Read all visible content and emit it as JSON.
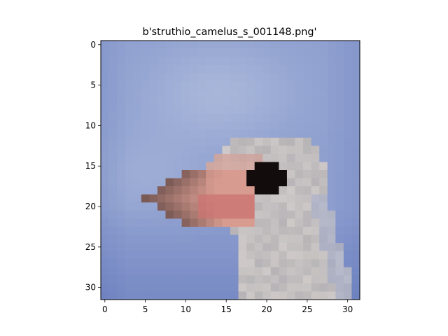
{
  "figure": {
    "title": "b'struthio_camelus_s_001148.png'"
  },
  "image": {
    "subject": "ostrich head close-up, low-resolution 32x32 thumbnail",
    "grid_size": [
      32,
      32
    ],
    "extent": [
      -0.5,
      31.5,
      31.5,
      -0.5
    ],
    "palette": {
      "sky_light": "#aab8da",
      "sky_mid": "#8e9fcf",
      "sky_dark": "#5f74b8",
      "neck_light": "#d9d3d0",
      "neck_mid": "#a4a2a8",
      "beak_pink": "#d89b90",
      "beak_red": "#c96f6e",
      "beak_dark": "#7a5a55",
      "eye": "#120c0c"
    }
  },
  "axes": {
    "x_ticks": [
      "0",
      "5",
      "10",
      "15",
      "20",
      "25",
      "30"
    ],
    "y_ticks": [
      "0",
      "5",
      "10",
      "15",
      "20",
      "25",
      "30"
    ]
  }
}
